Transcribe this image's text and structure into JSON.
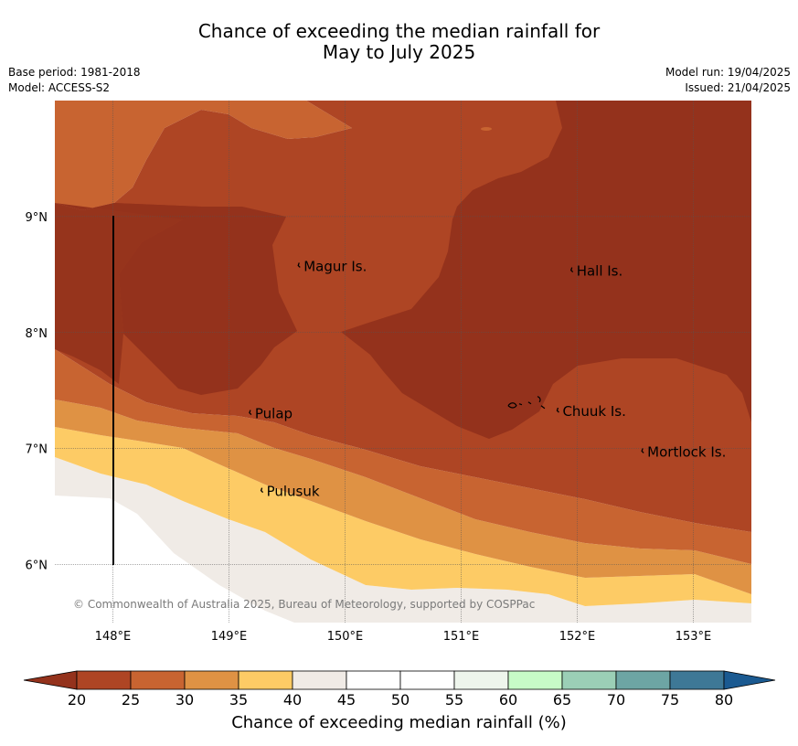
{
  "title": {
    "line1": "Chance of exceeding the median rainfall for",
    "line2": "May to July 2025"
  },
  "meta": {
    "base_period": "Base period: 1981-2018",
    "model": "Model: ACCESS-S2",
    "model_run": "Model run: 19/04/2025",
    "issued": "Issued: 21/04/2025"
  },
  "map": {
    "lon_range": [
      147.5,
      153.5
    ],
    "lat_range": [
      5.5,
      10.0
    ],
    "x_ticks": [
      "148°E",
      "149°E",
      "150°E",
      "151°E",
      "152°E",
      "153°E"
    ],
    "y_ticks": [
      "9°N",
      "8°N",
      "7°N",
      "6°N"
    ],
    "places": [
      {
        "name": "Magur Is.",
        "lon": 149.62,
        "lat": 8.57
      },
      {
        "name": "Hall Is.",
        "lon": 151.97,
        "lat": 8.53
      },
      {
        "name": "Pulap",
        "lon": 149.2,
        "lat": 7.3
      },
      {
        "name": "Chuuk Is.",
        "lon": 151.85,
        "lat": 7.32
      },
      {
        "name": "Mortlock Is.",
        "lon": 152.58,
        "lat": 6.97
      },
      {
        "name": "Pulusuk",
        "lon": 149.3,
        "lat": 6.63
      }
    ],
    "copyright": "© Commonwealth of Australia 2025, Bureau of Meteorology, supported by COSPPac",
    "colors": {
      "below20": "#94321c",
      "20-25": "#ae4524",
      "25-30": "#c86431",
      "30-35": "#df9244",
      "35-40": "#fdcb65",
      "40-45": "#f0ebe6"
    }
  },
  "colorbar": {
    "ticks": [
      "20",
      "25",
      "30",
      "35",
      "40",
      "45",
      "50",
      "55",
      "60",
      "65",
      "70",
      "75",
      "80"
    ],
    "colors": [
      "#ae4524",
      "#c86431",
      "#df9244",
      "#fdcb65",
      "#f0ebe6",
      "#ffffff",
      "#ffffff",
      "#eef5ec",
      "#c7fbc7",
      "#9bcfb6",
      "#6da5a4",
      "#3e7896"
    ],
    "low_color": "#94321c",
    "high_color": "#1b5a91",
    "label": "Chance of exceeding median rainfall (%)"
  }
}
